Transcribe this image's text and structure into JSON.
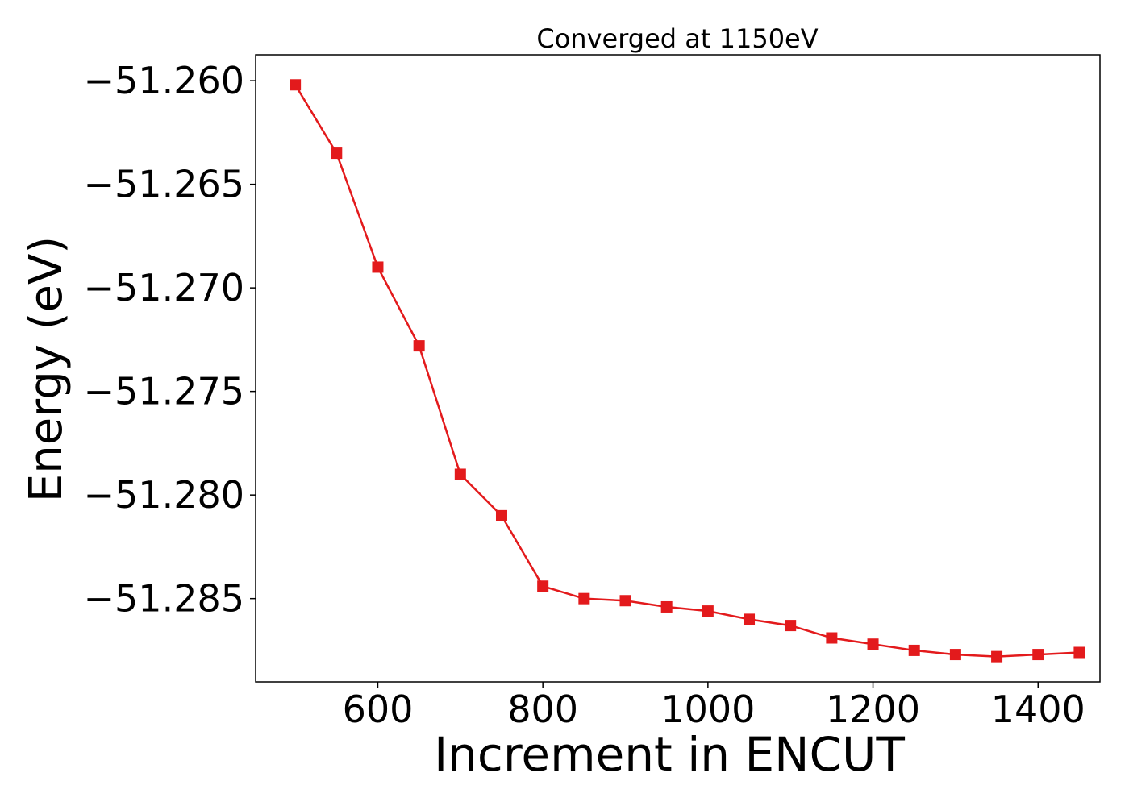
{
  "chart_data": {
    "type": "line",
    "title": "Converged at 1150eV",
    "xlabel": "Increment in ENCUT",
    "ylabel": "Energy (eV)",
    "x": [
      500,
      550,
      600,
      650,
      700,
      750,
      800,
      850,
      900,
      950,
      1000,
      1050,
      1100,
      1150,
      1200,
      1250,
      1300,
      1350,
      1400,
      1450
    ],
    "series": [
      {
        "name": "",
        "values": [
          -51.2602,
          -51.2635,
          -51.269,
          -51.2728,
          -51.279,
          -51.281,
          -51.2844,
          -51.285,
          -51.2851,
          -51.2854,
          -51.2856,
          -51.286,
          -51.2863,
          -51.2869,
          -51.2872,
          -51.2875,
          -51.2877,
          -51.2878,
          -51.2877,
          -51.2876
        ],
        "color": "#e31a1c",
        "marker": "square"
      }
    ],
    "xlim": [
      452,
      1475
    ],
    "ylim": [
      -51.28902,
      -51.25875
    ],
    "xticks": [
      600,
      800,
      1000,
      1200,
      1400
    ],
    "xtick_labels": [
      "600",
      "800",
      "1000",
      "1200",
      "1400"
    ],
    "yticks": [
      -51.26,
      -51.265,
      -51.27,
      -51.275,
      -51.28,
      -51.285
    ],
    "ytick_labels": [
      "−51.260",
      "−51.265",
      "−51.270",
      "−51.275",
      "−51.280",
      "−51.285"
    ],
    "grid": false,
    "legend": "none"
  }
}
